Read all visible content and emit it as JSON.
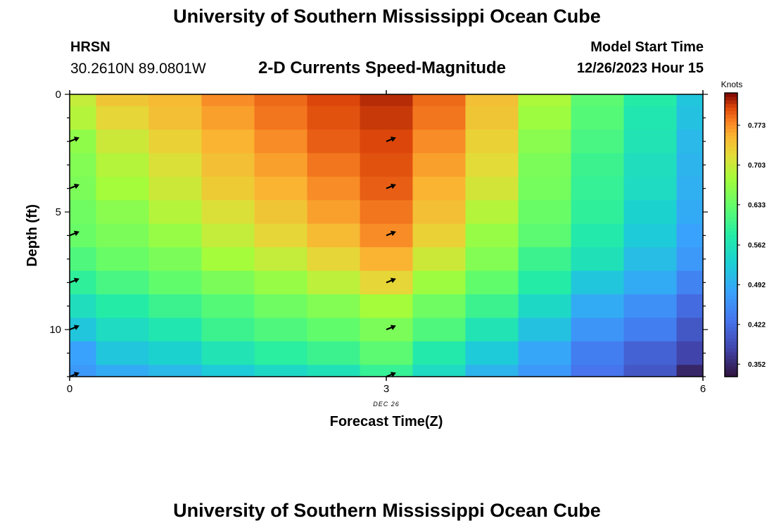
{
  "header": {
    "title": "University of Southern Mississippi Ocean Cube",
    "station": "HRSN",
    "coords": "30.2610N  89.0801W",
    "subtitle": "2-D Currents Speed-Magnitude",
    "model_start_label": "Model Start Time",
    "model_start_value": "12/26/2023 Hour 15"
  },
  "footer": {
    "title": "University of Southern Mississippi Ocean Cube"
  },
  "chart_data": {
    "type": "heatmap",
    "xlabel": "Forecast Time(Z)",
    "ylabel": "Depth (ft)",
    "x_ticks": [
      0,
      3,
      6
    ],
    "y_ticks": [
      0,
      5,
      10
    ],
    "x_date_label": "DEC 26",
    "xlim": [
      0,
      6
    ],
    "ylim": [
      0,
      12
    ],
    "x_centers": [
      0.0,
      0.5,
      1.0,
      1.5,
      2.0,
      2.5,
      3.0,
      3.5,
      4.0,
      4.5,
      5.0,
      5.5,
      6.0
    ],
    "y_centers": [
      0,
      1,
      2,
      3,
      4,
      5,
      6,
      7,
      8,
      9,
      10,
      11,
      12
    ],
    "values": [
      [
        0.7,
        0.74,
        0.75,
        0.775,
        0.79,
        0.805,
        0.815,
        0.79,
        0.745,
        0.685,
        0.625,
        0.58,
        0.52
      ],
      [
        0.69,
        0.725,
        0.745,
        0.765,
        0.785,
        0.8,
        0.81,
        0.785,
        0.74,
        0.675,
        0.62,
        0.57,
        0.515
      ],
      [
        0.665,
        0.705,
        0.73,
        0.755,
        0.775,
        0.795,
        0.805,
        0.775,
        0.73,
        0.66,
        0.61,
        0.565,
        0.505
      ],
      [
        0.655,
        0.69,
        0.715,
        0.745,
        0.765,
        0.785,
        0.8,
        0.765,
        0.72,
        0.65,
        0.6,
        0.555,
        0.5
      ],
      [
        0.65,
        0.68,
        0.705,
        0.735,
        0.755,
        0.775,
        0.795,
        0.755,
        0.71,
        0.645,
        0.595,
        0.55,
        0.495
      ],
      [
        0.64,
        0.66,
        0.69,
        0.715,
        0.74,
        0.765,
        0.785,
        0.745,
        0.69,
        0.635,
        0.59,
        0.535,
        0.49
      ],
      [
        0.635,
        0.65,
        0.67,
        0.7,
        0.725,
        0.75,
        0.775,
        0.73,
        0.67,
        0.625,
        0.575,
        0.525,
        0.48
      ],
      [
        0.615,
        0.635,
        0.65,
        0.68,
        0.7,
        0.725,
        0.755,
        0.705,
        0.655,
        0.6,
        0.56,
        0.51,
        0.47
      ],
      [
        0.59,
        0.61,
        0.63,
        0.65,
        0.67,
        0.695,
        0.725,
        0.675,
        0.63,
        0.58,
        0.52,
        0.49,
        0.445
      ],
      [
        0.555,
        0.58,
        0.6,
        0.62,
        0.64,
        0.655,
        0.68,
        0.64,
        0.6,
        0.545,
        0.49,
        0.46,
        0.42
      ],
      [
        0.52,
        0.55,
        0.57,
        0.6,
        0.615,
        0.63,
        0.65,
        0.615,
        0.565,
        0.515,
        0.465,
        0.44,
        0.4
      ],
      [
        0.48,
        0.52,
        0.535,
        0.565,
        0.585,
        0.6,
        0.625,
        0.575,
        0.525,
        0.485,
        0.44,
        0.41,
        0.38
      ],
      [
        0.47,
        0.49,
        0.505,
        0.525,
        0.545,
        0.56,
        0.595,
        0.55,
        0.5,
        0.47,
        0.43,
        0.4,
        0.35
      ]
    ],
    "arrows": {
      "x": [
        0,
        3
      ],
      "depths": [
        2,
        4,
        6,
        8,
        10,
        12
      ]
    },
    "colorbar": {
      "units": "Knots",
      "ticks": [
        0.352,
        0.422,
        0.492,
        0.562,
        0.633,
        0.703,
        0.773
      ],
      "range": [
        0.33,
        0.83
      ]
    }
  }
}
